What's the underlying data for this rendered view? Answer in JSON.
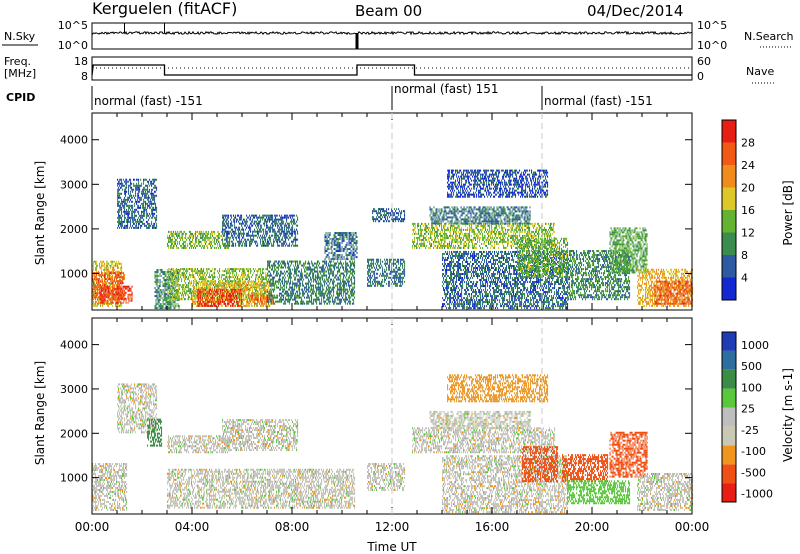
{
  "header": {
    "title": "Kerguelen (fitACF)",
    "beam": "Beam 00",
    "date": "04/Dec/2014"
  },
  "noise_panel": {
    "left_label": "N.Sky",
    "right_label": "N.Search",
    "left_ticks": [
      "10^5",
      "10^0"
    ],
    "right_ticks": [
      "10^5",
      "10^0"
    ]
  },
  "freq_panel": {
    "left_label_line1": "Freq.",
    "left_label_line2": "[MHz]",
    "right_label": "Nave",
    "left_ticks": [
      "18",
      "8"
    ],
    "right_ticks": [
      "60",
      "0"
    ]
  },
  "cpid": {
    "label": "CPID",
    "segments": [
      {
        "start_h": 0,
        "end_h": 12,
        "text": "normal (fast) -151"
      },
      {
        "start_h": 12,
        "end_h": 18,
        "text": "normal (fast) 151"
      },
      {
        "start_h": 18,
        "end_h": 24,
        "text": "normal (fast) -151"
      }
    ]
  },
  "colors": {
    "power": [
      "#1428d2",
      "#2d5aa0",
      "#3c8c50",
      "#64b432",
      "#dcc828",
      "#f08c1e",
      "#f05a14",
      "#e61e14"
    ],
    "velocity": [
      "#e61e14",
      "#f05014",
      "#f0961e",
      "#c8c8b4",
      "#bebebe",
      "#5ac83c",
      "#3c8c46",
      "#2d6ea0",
      "#1e3cb4"
    ]
  },
  "chart_data": [
    {
      "type": "heatmap",
      "name": "power",
      "ylabel": "Slant Range [km]",
      "xlim": [
        0,
        24
      ],
      "ylim": [
        180,
        4600
      ],
      "yticks": [
        1000,
        2000,
        3000,
        4000
      ],
      "colorbar": {
        "label": "Power [dB]",
        "ticks": [
          "4",
          "8",
          "12",
          "16",
          "20",
          "24",
          "28"
        ],
        "range": [
          0,
          32
        ]
      },
      "regions": [
        {
          "t0": 0.0,
          "t1": 1.2,
          "r0": 250,
          "r1": 1250,
          "v": 18
        },
        {
          "t0": 0.0,
          "t1": 1.3,
          "r0": 400,
          "r1": 1000,
          "v": 25
        },
        {
          "t0": 0.3,
          "t1": 1.6,
          "r0": 320,
          "r1": 700,
          "v": 28
        },
        {
          "t0": 1.0,
          "t1": 2.6,
          "r0": 2000,
          "r1": 3100,
          "v": 7
        },
        {
          "t0": 2.5,
          "t1": 3.5,
          "r0": 200,
          "r1": 1100,
          "v": 10
        },
        {
          "t0": 3.0,
          "t1": 5.5,
          "r0": 1550,
          "r1": 1950,
          "v": 14
        },
        {
          "t0": 3.0,
          "t1": 7.0,
          "r0": 400,
          "r1": 1100,
          "v": 15
        },
        {
          "t0": 4.0,
          "t1": 7.2,
          "r0": 250,
          "r1": 800,
          "v": 19
        },
        {
          "t0": 4.2,
          "t1": 6.0,
          "r0": 250,
          "r1": 650,
          "v": 28
        },
        {
          "t0": 6.2,
          "t1": 7.3,
          "r0": 300,
          "r1": 500,
          "v": 25
        },
        {
          "t0": 5.2,
          "t1": 8.2,
          "r0": 1600,
          "r1": 2300,
          "v": 7
        },
        {
          "t0": 7.0,
          "t1": 10.5,
          "r0": 300,
          "r1": 1250,
          "v": 9
        },
        {
          "t0": 9.3,
          "t1": 10.6,
          "r0": 1300,
          "r1": 1900,
          "v": 7
        },
        {
          "t0": 11.0,
          "t1": 12.5,
          "r0": 700,
          "r1": 1300,
          "v": 8
        },
        {
          "t0": 11.2,
          "t1": 12.5,
          "r0": 2150,
          "r1": 2450,
          "v": 6
        },
        {
          "t0": 12.8,
          "t1": 18.5,
          "r0": 1550,
          "r1": 2100,
          "v": 15
        },
        {
          "t0": 13.5,
          "t1": 17.5,
          "r0": 2100,
          "r1": 2500,
          "v": 8
        },
        {
          "t0": 14.2,
          "t1": 18.2,
          "r0": 2700,
          "r1": 3300,
          "v": 5
        },
        {
          "t0": 14.0,
          "t1": 19.0,
          "r0": 200,
          "r1": 1500,
          "v": 7
        },
        {
          "t0": 17.0,
          "t1": 19.0,
          "r0": 900,
          "r1": 1800,
          "v": 13
        },
        {
          "t0": 19.0,
          "t1": 21.5,
          "r0": 400,
          "r1": 1500,
          "v": 10
        },
        {
          "t0": 20.7,
          "t1": 22.2,
          "r0": 1000,
          "r1": 2000,
          "v": 12
        },
        {
          "t0": 21.8,
          "t1": 24.0,
          "r0": 250,
          "r1": 1100,
          "v": 20
        },
        {
          "t0": 22.5,
          "t1": 24.0,
          "r0": 300,
          "r1": 800,
          "v": 26
        }
      ]
    },
    {
      "type": "heatmap",
      "name": "velocity",
      "ylabel": "Slant Range [km]",
      "xlabel": "Time UT",
      "xlim": [
        0,
        24
      ],
      "ylim": [
        180,
        4600
      ],
      "yticks": [
        1000,
        2000,
        3000,
        4000
      ],
      "xticks": [
        "00:00",
        "04:00",
        "08:00",
        "12:00",
        "16:00",
        "20:00",
        "00:00"
      ],
      "colorbar": {
        "label": "Velocity [m s-1]",
        "ticks": [
          "1000",
          "500",
          "100",
          "25",
          "-25",
          "-100",
          "-500",
          "-1000"
        ],
        "range": [
          -1000,
          1000
        ]
      },
      "regions": [
        {
          "t0": 0.0,
          "t1": 1.4,
          "r0": 250,
          "r1": 1300,
          "v": 0
        },
        {
          "t0": 1.0,
          "t1": 2.6,
          "r0": 2000,
          "r1": 3100,
          "v": 0
        },
        {
          "t0": 2.2,
          "t1": 2.8,
          "r0": 1700,
          "r1": 2300,
          "v": 300
        },
        {
          "t0": 3.0,
          "t1": 5.5,
          "r0": 1550,
          "r1": 1950,
          "v": 0
        },
        {
          "t0": 3.0,
          "t1": 10.5,
          "r0": 300,
          "r1": 1200,
          "v": 0
        },
        {
          "t0": 5.2,
          "t1": 8.2,
          "r0": 1600,
          "r1": 2300,
          "v": 0
        },
        {
          "t0": 11.0,
          "t1": 12.5,
          "r0": 700,
          "r1": 1300,
          "v": 0
        },
        {
          "t0": 12.8,
          "t1": 18.5,
          "r0": 1550,
          "r1": 2100,
          "v": 0
        },
        {
          "t0": 13.5,
          "t1": 17.5,
          "r0": 2100,
          "r1": 2500,
          "v": 0
        },
        {
          "t0": 14.2,
          "t1": 18.2,
          "r0": 2700,
          "r1": 3300,
          "v": -50
        },
        {
          "t0": 14.0,
          "t1": 19.0,
          "r0": 200,
          "r1": 1500,
          "v": 0
        },
        {
          "t0": 17.2,
          "t1": 18.6,
          "r0": 900,
          "r1": 1700,
          "v": -150
        },
        {
          "t0": 18.8,
          "t1": 20.6,
          "r0": 900,
          "r1": 1500,
          "v": -150
        },
        {
          "t0": 20.7,
          "t1": 22.2,
          "r0": 1000,
          "r1": 2000,
          "v": -150
        },
        {
          "t0": 19.0,
          "t1": 21.5,
          "r0": 400,
          "r1": 900,
          "v": 60
        },
        {
          "t0": 21.8,
          "t1": 24.0,
          "r0": 250,
          "r1": 1100,
          "v": 0
        }
      ]
    }
  ]
}
